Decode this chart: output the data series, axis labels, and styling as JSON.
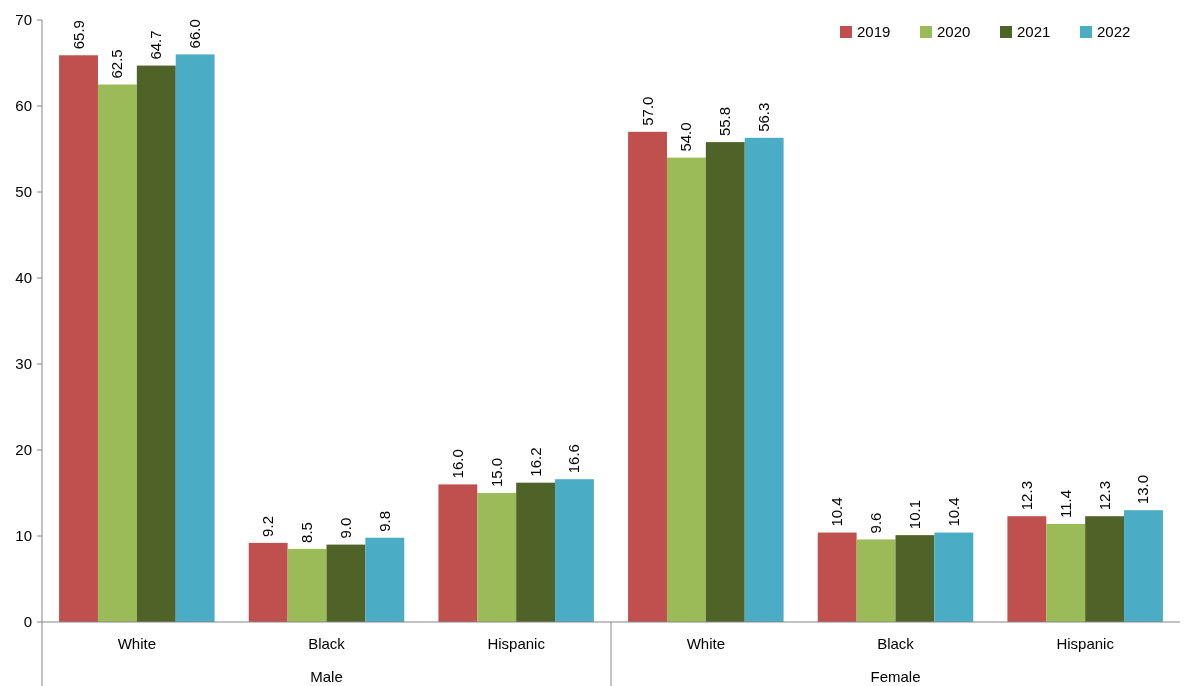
{
  "chart_data": {
    "type": "bar",
    "categories": [
      "White",
      "Black",
      "Hispanic",
      "White",
      "Black",
      "Hispanic"
    ],
    "annotations": [
      "Male",
      "Female"
    ],
    "series": [
      {
        "name": "2019",
        "color": "#c0504d",
        "values": [
          65.9,
          9.2,
          16.0,
          57.0,
          10.4,
          12.3
        ],
        "value_labels": [
          "65.9",
          "9.2",
          "16.0",
          "57.0",
          "10.4",
          "12.3"
        ]
      },
      {
        "name": "2020",
        "color": "#9bbb59",
        "values": [
          62.5,
          8.5,
          15.0,
          54.0,
          9.6,
          11.4
        ],
        "value_labels": [
          "62.5",
          "8.5",
          "15.0",
          "54.0",
          "9.6",
          "11.4"
        ]
      },
      {
        "name": "2021",
        "color": "#4f6228",
        "values": [
          64.7,
          9.0,
          16.2,
          55.8,
          10.1,
          12.3
        ],
        "value_labels": [
          "64.7",
          "9.0",
          "16.2",
          "55.8",
          "10.1",
          "12.3"
        ]
      },
      {
        "name": "2022",
        "color": "#4bacc6",
        "values": [
          66.0,
          9.8,
          16.6,
          56.3,
          10.4,
          13.0
        ],
        "value_labels": [
          "66.0",
          "9.8",
          "16.6",
          "56.3",
          "10.4",
          "13.0"
        ]
      }
    ],
    "ylim": [
      0,
      70
    ],
    "yticks": [
      0,
      10,
      20,
      30,
      40,
      50,
      60,
      70
    ],
    "legend": "top right"
  }
}
